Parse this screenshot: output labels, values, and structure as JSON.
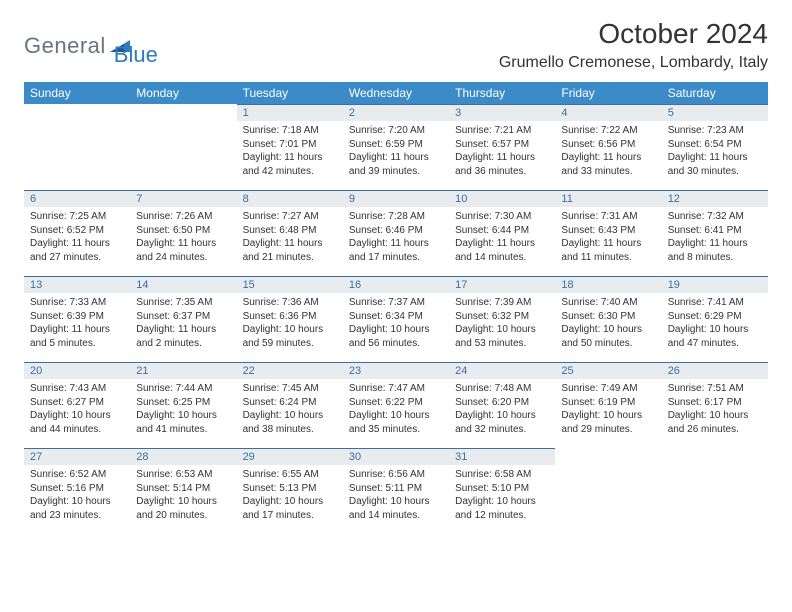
{
  "brand": {
    "part1": "General",
    "part2": "Blue"
  },
  "title": "October 2024",
  "location": "Grumello Cremonese, Lombardy, Italy",
  "colors": {
    "header_bg": "#3b8bc8",
    "header_fg": "#ffffff",
    "daynum_bg": "#e8ecef",
    "daynum_fg": "#3b6f9e",
    "daynum_border": "#3b6f9e",
    "text": "#333333",
    "logo_gray": "#6b7280",
    "logo_blue": "#2f7bbf"
  },
  "weekdays": [
    "Sunday",
    "Monday",
    "Tuesday",
    "Wednesday",
    "Thursday",
    "Friday",
    "Saturday"
  ],
  "weeks": [
    [
      null,
      null,
      {
        "n": "1",
        "sr": "7:18 AM",
        "ss": "7:01 PM",
        "dl": "11 hours and 42 minutes."
      },
      {
        "n": "2",
        "sr": "7:20 AM",
        "ss": "6:59 PM",
        "dl": "11 hours and 39 minutes."
      },
      {
        "n": "3",
        "sr": "7:21 AM",
        "ss": "6:57 PM",
        "dl": "11 hours and 36 minutes."
      },
      {
        "n": "4",
        "sr": "7:22 AM",
        "ss": "6:56 PM",
        "dl": "11 hours and 33 minutes."
      },
      {
        "n": "5",
        "sr": "7:23 AM",
        "ss": "6:54 PM",
        "dl": "11 hours and 30 minutes."
      }
    ],
    [
      {
        "n": "6",
        "sr": "7:25 AM",
        "ss": "6:52 PM",
        "dl": "11 hours and 27 minutes."
      },
      {
        "n": "7",
        "sr": "7:26 AM",
        "ss": "6:50 PM",
        "dl": "11 hours and 24 minutes."
      },
      {
        "n": "8",
        "sr": "7:27 AM",
        "ss": "6:48 PM",
        "dl": "11 hours and 21 minutes."
      },
      {
        "n": "9",
        "sr": "7:28 AM",
        "ss": "6:46 PM",
        "dl": "11 hours and 17 minutes."
      },
      {
        "n": "10",
        "sr": "7:30 AM",
        "ss": "6:44 PM",
        "dl": "11 hours and 14 minutes."
      },
      {
        "n": "11",
        "sr": "7:31 AM",
        "ss": "6:43 PM",
        "dl": "11 hours and 11 minutes."
      },
      {
        "n": "12",
        "sr": "7:32 AM",
        "ss": "6:41 PM",
        "dl": "11 hours and 8 minutes."
      }
    ],
    [
      {
        "n": "13",
        "sr": "7:33 AM",
        "ss": "6:39 PM",
        "dl": "11 hours and 5 minutes."
      },
      {
        "n": "14",
        "sr": "7:35 AM",
        "ss": "6:37 PM",
        "dl": "11 hours and 2 minutes."
      },
      {
        "n": "15",
        "sr": "7:36 AM",
        "ss": "6:36 PM",
        "dl": "10 hours and 59 minutes."
      },
      {
        "n": "16",
        "sr": "7:37 AM",
        "ss": "6:34 PM",
        "dl": "10 hours and 56 minutes."
      },
      {
        "n": "17",
        "sr": "7:39 AM",
        "ss": "6:32 PM",
        "dl": "10 hours and 53 minutes."
      },
      {
        "n": "18",
        "sr": "7:40 AM",
        "ss": "6:30 PM",
        "dl": "10 hours and 50 minutes."
      },
      {
        "n": "19",
        "sr": "7:41 AM",
        "ss": "6:29 PM",
        "dl": "10 hours and 47 minutes."
      }
    ],
    [
      {
        "n": "20",
        "sr": "7:43 AM",
        "ss": "6:27 PM",
        "dl": "10 hours and 44 minutes."
      },
      {
        "n": "21",
        "sr": "7:44 AM",
        "ss": "6:25 PM",
        "dl": "10 hours and 41 minutes."
      },
      {
        "n": "22",
        "sr": "7:45 AM",
        "ss": "6:24 PM",
        "dl": "10 hours and 38 minutes."
      },
      {
        "n": "23",
        "sr": "7:47 AM",
        "ss": "6:22 PM",
        "dl": "10 hours and 35 minutes."
      },
      {
        "n": "24",
        "sr": "7:48 AM",
        "ss": "6:20 PM",
        "dl": "10 hours and 32 minutes."
      },
      {
        "n": "25",
        "sr": "7:49 AM",
        "ss": "6:19 PM",
        "dl": "10 hours and 29 minutes."
      },
      {
        "n": "26",
        "sr": "7:51 AM",
        "ss": "6:17 PM",
        "dl": "10 hours and 26 minutes."
      }
    ],
    [
      {
        "n": "27",
        "sr": "6:52 AM",
        "ss": "5:16 PM",
        "dl": "10 hours and 23 minutes."
      },
      {
        "n": "28",
        "sr": "6:53 AM",
        "ss": "5:14 PM",
        "dl": "10 hours and 20 minutes."
      },
      {
        "n": "29",
        "sr": "6:55 AM",
        "ss": "5:13 PM",
        "dl": "10 hours and 17 minutes."
      },
      {
        "n": "30",
        "sr": "6:56 AM",
        "ss": "5:11 PM",
        "dl": "10 hours and 14 minutes."
      },
      {
        "n": "31",
        "sr": "6:58 AM",
        "ss": "5:10 PM",
        "dl": "10 hours and 12 minutes."
      },
      null,
      null
    ]
  ],
  "labels": {
    "sunrise": "Sunrise: ",
    "sunset": "Sunset: ",
    "daylight": "Daylight: "
  }
}
